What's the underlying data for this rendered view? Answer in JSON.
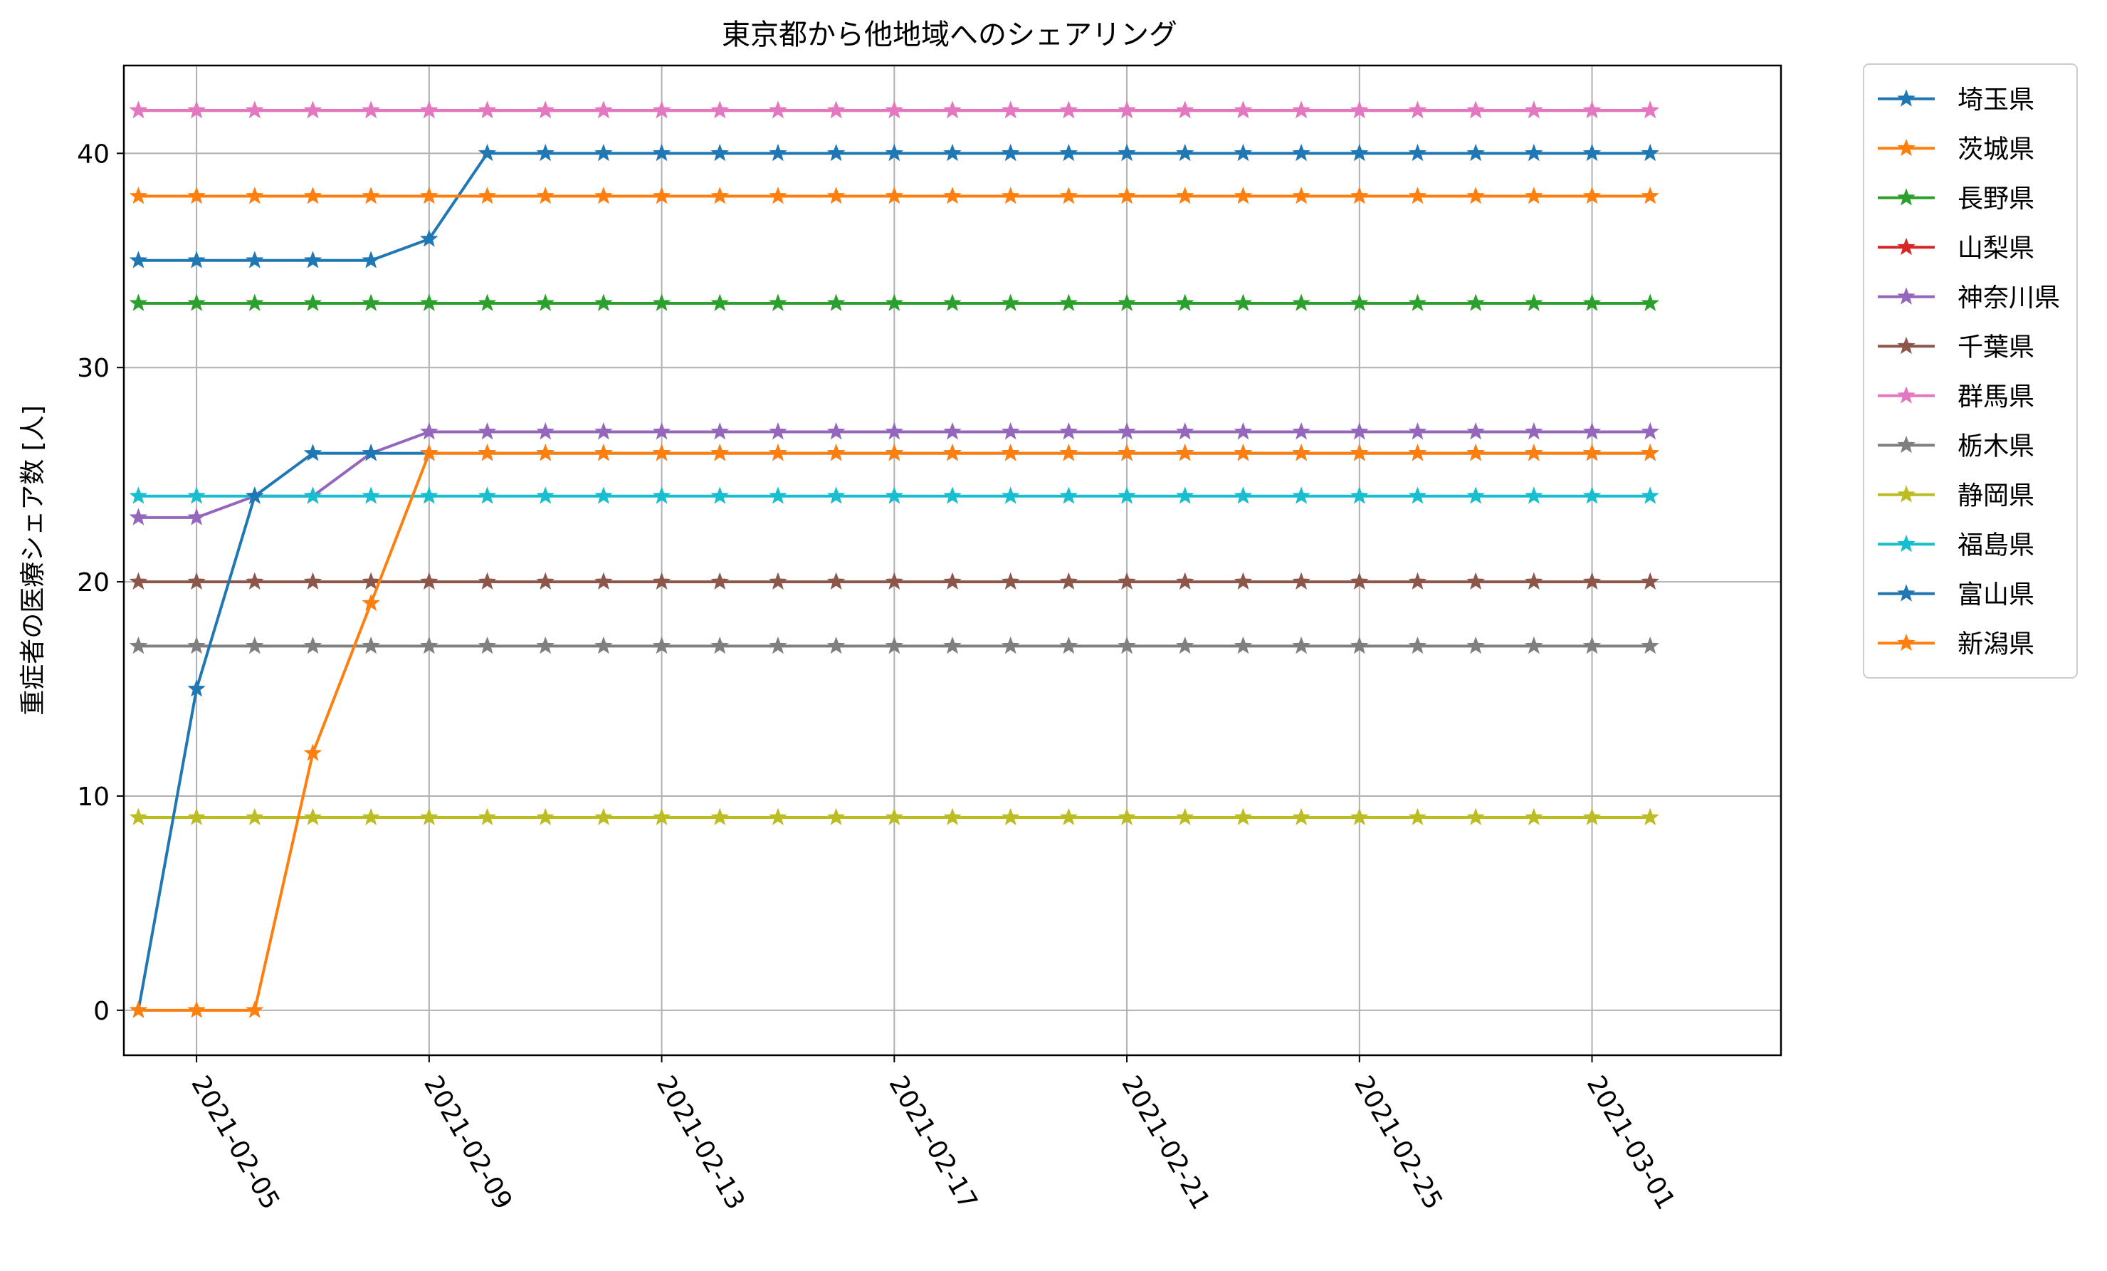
{
  "chart_data": {
    "type": "line",
    "title": "東京都から他地域へのシェアリング",
    "ylabel": "重症者の医療シェア数 [人]",
    "xlabel": "",
    "x_start": "2021-02-04",
    "x_count": 27,
    "xlim": [
      "2021-02-03 18:00",
      "2021-03-04 06:00"
    ],
    "ylim": [
      -2.1,
      44.1
    ],
    "yticks": [
      0,
      10,
      20,
      30,
      40
    ],
    "xticks": [
      "2021-02-05",
      "2021-02-09",
      "2021-02-13",
      "2021-02-17",
      "2021-02-21",
      "2021-02-25",
      "2021-03-01"
    ],
    "marker": "star",
    "grid": true,
    "legend": "outside-top-right",
    "series": [
      {
        "name": "埼玉県",
        "color": "#1f77b4",
        "values": [
          35,
          35,
          35,
          35,
          35,
          36,
          40,
          40,
          40,
          40,
          40,
          40,
          40,
          40,
          40,
          40,
          40,
          40,
          40,
          40,
          40,
          40,
          40,
          40,
          40,
          40,
          40
        ]
      },
      {
        "name": "茨城県",
        "color": "#ff7f0e",
        "values": [
          38,
          38,
          38,
          38,
          38,
          38,
          38,
          38,
          38,
          38,
          38,
          38,
          38,
          38,
          38,
          38,
          38,
          38,
          38,
          38,
          38,
          38,
          38,
          38,
          38,
          38,
          38
        ]
      },
      {
        "name": "長野県",
        "color": "#2ca02c",
        "values": [
          33,
          33,
          33,
          33,
          33,
          33,
          33,
          33,
          33,
          33,
          33,
          33,
          33,
          33,
          33,
          33,
          33,
          33,
          33,
          33,
          33,
          33,
          33,
          33,
          33,
          33,
          33
        ]
      },
      {
        "name": "山梨県",
        "color": "#d62728",
        "values": [
          42,
          42,
          42,
          42,
          42,
          42,
          42,
          42,
          42,
          42,
          42,
          42,
          42,
          42,
          42,
          42,
          42,
          42,
          42,
          42,
          42,
          42,
          42,
          42,
          42,
          42,
          42
        ]
      },
      {
        "name": "神奈川県",
        "color": "#9467bd",
        "values": [
          23,
          23,
          24,
          24,
          26,
          27,
          27,
          27,
          27,
          27,
          27,
          27,
          27,
          27,
          27,
          27,
          27,
          27,
          27,
          27,
          27,
          27,
          27,
          27,
          27,
          27,
          27
        ]
      },
      {
        "name": "千葉県",
        "color": "#8c564b",
        "values": [
          20,
          20,
          20,
          20,
          20,
          20,
          20,
          20,
          20,
          20,
          20,
          20,
          20,
          20,
          20,
          20,
          20,
          20,
          20,
          20,
          20,
          20,
          20,
          20,
          20,
          20,
          20
        ]
      },
      {
        "name": "群馬県",
        "color": "#e377c2",
        "values": [
          42,
          42,
          42,
          42,
          42,
          42,
          42,
          42,
          42,
          42,
          42,
          42,
          42,
          42,
          42,
          42,
          42,
          42,
          42,
          42,
          42,
          42,
          42,
          42,
          42,
          42,
          42
        ]
      },
      {
        "name": "栃木県",
        "color": "#7f7f7f",
        "values": [
          17,
          17,
          17,
          17,
          17,
          17,
          17,
          17,
          17,
          17,
          17,
          17,
          17,
          17,
          17,
          17,
          17,
          17,
          17,
          17,
          17,
          17,
          17,
          17,
          17,
          17,
          17
        ]
      },
      {
        "name": "静岡県",
        "color": "#bcbd22",
        "values": [
          9,
          9,
          9,
          9,
          9,
          9,
          9,
          9,
          9,
          9,
          9,
          9,
          9,
          9,
          9,
          9,
          9,
          9,
          9,
          9,
          9,
          9,
          9,
          9,
          9,
          9,
          9
        ]
      },
      {
        "name": "福島県",
        "color": "#17becf",
        "values": [
          24,
          24,
          24,
          24,
          24,
          24,
          24,
          24,
          24,
          24,
          24,
          24,
          24,
          24,
          24,
          24,
          24,
          24,
          24,
          24,
          24,
          24,
          24,
          24,
          24,
          24,
          24
        ]
      },
      {
        "name": "富山県",
        "color": "#1f77b4",
        "values": [
          0,
          15,
          24,
          26,
          26,
          26,
          26,
          26,
          26,
          26,
          26,
          26,
          26,
          26,
          26,
          26,
          26,
          26,
          26,
          26,
          26,
          26,
          26,
          26,
          26,
          26,
          26
        ]
      },
      {
        "name": "新潟県",
        "color": "#ff7f0e",
        "values": [
          0,
          0,
          0,
          12,
          19,
          26,
          26,
          26,
          26,
          26,
          26,
          26,
          26,
          26,
          26,
          26,
          26,
          26,
          26,
          26,
          26,
          26,
          26,
          26,
          26,
          26,
          26
        ]
      }
    ]
  }
}
